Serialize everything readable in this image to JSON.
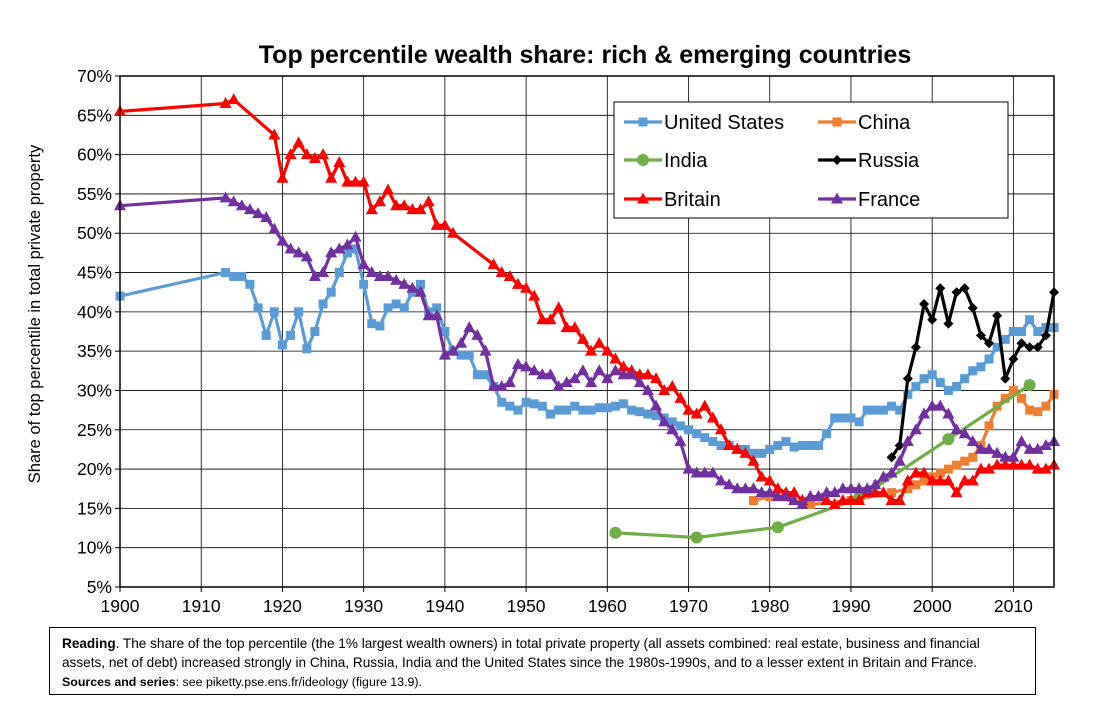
{
  "chart_data": {
    "type": "line",
    "title": "Top percentile wealth share: rich & emerging countries",
    "ylabel": "Share of top percentile in total private property",
    "xlabel": "",
    "xlim": [
      1900,
      2015
    ],
    "ylim": [
      5,
      70
    ],
    "x_ticks": [
      "1900",
      "1910",
      "1920",
      "1930",
      "1940",
      "1950",
      "1960",
      "1970",
      "1980",
      "1990",
      "2000",
      "2010"
    ],
    "y_ticks": [
      "5%",
      "10%",
      "15%",
      "20%",
      "25%",
      "30%",
      "35%",
      "40%",
      "45%",
      "50%",
      "55%",
      "60%",
      "65%",
      "70%"
    ],
    "grid": true,
    "legend_position": "top-right",
    "series": [
      {
        "name": "United States",
        "color": "#5b9bd5",
        "marker": "square",
        "x": [
          1900,
          1913,
          1914,
          1915,
          1916,
          1917,
          1918,
          1919,
          1920,
          1921,
          1922,
          1923,
          1924,
          1925,
          1926,
          1927,
          1928,
          1929,
          1930,
          1931,
          1932,
          1933,
          1934,
          1935,
          1936,
          1937,
          1938,
          1939,
          1940,
          1941,
          1942,
          1943,
          1944,
          1945,
          1946,
          1947,
          1948,
          1949,
          1950,
          1951,
          1952,
          1953,
          1954,
          1955,
          1956,
          1957,
          1958,
          1959,
          1960,
          1961,
          1962,
          1963,
          1964,
          1965,
          1966,
          1967,
          1968,
          1969,
          1970,
          1971,
          1972,
          1973,
          1974,
          1975,
          1976,
          1977,
          1978,
          1979,
          1980,
          1981,
          1982,
          1983,
          1984,
          1985,
          1986,
          1987,
          1988,
          1989,
          1990,
          1991,
          1992,
          1993,
          1994,
          1995,
          1996,
          1997,
          1998,
          1999,
          2000,
          2001,
          2002,
          2003,
          2004,
          2005,
          2006,
          2007,
          2008,
          2009,
          2010,
          2011,
          2012,
          2013,
          2014,
          2015
        ],
        "y": [
          42,
          45,
          44.5,
          44.5,
          43.5,
          40.5,
          37,
          40,
          35.8,
          37,
          40,
          35.3,
          37.5,
          41,
          42.5,
          45,
          47.5,
          48,
          43.5,
          38.5,
          38.2,
          40.5,
          41,
          40.5,
          42.5,
          43.5,
          40,
          40.5,
          37.5,
          35,
          34.5,
          34.5,
          32,
          32,
          30.5,
          28.5,
          28,
          27.5,
          28.5,
          28.3,
          28,
          27,
          27.5,
          27.5,
          28,
          27.5,
          27.5,
          27.8,
          27.8,
          28,
          28.3,
          27.5,
          27.3,
          27,
          26.8,
          26.5,
          26,
          25.5,
          25,
          24.5,
          24,
          23.5,
          23,
          23,
          22.5,
          22.5,
          22,
          22,
          22.5,
          23,
          23.5,
          22.8,
          23,
          23,
          23,
          24.5,
          26.5,
          26.5,
          26.5,
          26,
          27.5,
          27.5,
          27.5,
          28,
          27.5,
          29.5,
          30.5,
          31.5,
          32,
          31,
          30,
          30.5,
          31.5,
          32.5,
          33,
          34,
          35.5,
          36.5,
          37.5,
          37.5,
          39,
          37.5,
          38,
          38
        ]
      },
      {
        "name": "China",
        "color": "#ed7d31",
        "marker": "square",
        "x": [
          1978,
          1980,
          1985,
          1990,
          1995,
          1997,
          1998,
          1999,
          2000,
          2001,
          2002,
          2003,
          2004,
          2005,
          2006,
          2007,
          2008,
          2009,
          2010,
          2011,
          2012,
          2013,
          2014,
          2015
        ],
        "y": [
          16,
          16.5,
          15.5,
          16,
          17,
          17.5,
          18,
          18.5,
          19,
          19.5,
          20,
          20.5,
          21,
          21.5,
          23,
          25.5,
          28,
          29,
          30,
          29,
          27.5,
          27.3,
          28,
          29.5
        ]
      },
      {
        "name": "India",
        "color": "#70ad47",
        "marker": "circle",
        "x": [
          1961,
          1971,
          1981,
          1991,
          2002,
          2012
        ],
        "y": [
          11.9,
          11.3,
          12.6,
          16.3,
          23.8,
          30.7
        ]
      },
      {
        "name": "Russia",
        "color": "#000000",
        "marker": "diamond",
        "x": [
          1995,
          1996,
          1997,
          1998,
          1999,
          2000,
          2001,
          2002,
          2003,
          2004,
          2005,
          2006,
          2007,
          2008,
          2009,
          2010,
          2011,
          2012,
          2013,
          2014,
          2015
        ],
        "y": [
          21.5,
          23,
          31.5,
          35.5,
          41,
          39,
          43,
          38.5,
          42.5,
          43,
          40.5,
          37,
          36,
          39.5,
          31.5,
          34,
          36,
          35.5,
          35.5,
          37,
          42.5
        ]
      },
      {
        "name": "Britain",
        "color": "#ff0000",
        "marker": "triangle",
        "x": [
          1900,
          1913,
          1914,
          1919,
          1920,
          1921,
          1922,
          1923,
          1924,
          1925,
          1926,
          1927,
          1928,
          1929,
          1930,
          1931,
          1932,
          1933,
          1934,
          1935,
          1936,
          1937,
          1938,
          1939,
          1940,
          1941,
          1946,
          1947,
          1948,
          1949,
          1950,
          1951,
          1952,
          1953,
          1954,
          1955,
          1956,
          1957,
          1958,
          1959,
          1960,
          1961,
          1962,
          1963,
          1964,
          1965,
          1966,
          1967,
          1968,
          1969,
          1970,
          1971,
          1972,
          1973,
          1974,
          1975,
          1976,
          1977,
          1978,
          1979,
          1980,
          1981,
          1982,
          1983,
          1984,
          1985,
          1986,
          1987,
          1988,
          1989,
          1990,
          1991,
          1992,
          1993,
          1994,
          1995,
          1996,
          1997,
          1998,
          1999,
          2000,
          2001,
          2002,
          2003,
          2004,
          2005,
          2006,
          2007,
          2008,
          2009,
          2010,
          2011,
          2012,
          2013,
          2014,
          2015
        ],
        "y": [
          65.5,
          66.5,
          67,
          62.5,
          57,
          60,
          61.5,
          60,
          59.5,
          60,
          57,
          59,
          56.5,
          56.5,
          56.5,
          53,
          54,
          55.5,
          53.5,
          53.5,
          53,
          53,
          54,
          51,
          51,
          50,
          46,
          45,
          44.5,
          43.5,
          43,
          42,
          39,
          39,
          40.5,
          38,
          38,
          36.5,
          35,
          36,
          35,
          34,
          33,
          32.5,
          32,
          32,
          31.5,
          30,
          30.5,
          29,
          27.5,
          27,
          28,
          26.5,
          25,
          23,
          22.5,
          22,
          21,
          19,
          18.5,
          17.5,
          17,
          17,
          16,
          16.5,
          16.5,
          16,
          15.5,
          16,
          16,
          16,
          17,
          17,
          17,
          16,
          16,
          18.5,
          19.5,
          19.5,
          18.5,
          18.5,
          18.5,
          17,
          18.5,
          18.5,
          20,
          20,
          20.5,
          20.5,
          20.5,
          20.5,
          20.5,
          20,
          20,
          20.5
        ]
      },
      {
        "name": "France",
        "color": "#7030a0",
        "marker": "triangle",
        "x": [
          1900,
          1913,
          1914,
          1915,
          1916,
          1917,
          1918,
          1919,
          1920,
          1921,
          1922,
          1923,
          1924,
          1925,
          1926,
          1927,
          1928,
          1929,
          1930,
          1931,
          1932,
          1933,
          1934,
          1935,
          1936,
          1937,
          1938,
          1939,
          1940,
          1941,
          1942,
          1943,
          1944,
          1945,
          1946,
          1947,
          1948,
          1949,
          1950,
          1951,
          1952,
          1953,
          1954,
          1955,
          1956,
          1957,
          1958,
          1959,
          1960,
          1961,
          1962,
          1963,
          1964,
          1965,
          1966,
          1967,
          1968,
          1969,
          1970,
          1971,
          1972,
          1973,
          1974,
          1975,
          1976,
          1977,
          1978,
          1979,
          1980,
          1981,
          1982,
          1983,
          1984,
          1985,
          1986,
          1987,
          1988,
          1989,
          1990,
          1991,
          1992,
          1993,
          1994,
          1995,
          1996,
          1997,
          1998,
          1999,
          2000,
          2001,
          2002,
          2003,
          2004,
          2005,
          2006,
          2007,
          2008,
          2009,
          2010,
          2011,
          2012,
          2013,
          2014,
          2015
        ],
        "y": [
          53.5,
          54.5,
          54,
          53.5,
          53,
          52.5,
          52,
          50.5,
          49,
          48,
          47.5,
          47,
          44.5,
          45,
          47.5,
          48,
          48.5,
          49.5,
          46,
          45,
          44.5,
          44.5,
          44,
          43.5,
          43,
          42.5,
          39.5,
          39.5,
          34.5,
          35,
          36,
          38,
          37,
          35,
          30.5,
          30.5,
          31,
          33.3,
          33,
          32.5,
          32,
          32,
          30.5,
          31,
          31.5,
          32.5,
          31,
          32.5,
          31.5,
          32.5,
          32,
          32,
          31,
          30,
          28,
          26,
          25,
          23.5,
          20,
          19.5,
          19.5,
          19.5,
          18.5,
          18,
          17.5,
          17.5,
          17.5,
          17,
          17,
          16.5,
          16.5,
          16,
          15.5,
          16.5,
          16.5,
          17,
          17,
          17.5,
          17.5,
          17.5,
          17.5,
          18,
          19,
          19.5,
          21,
          23.5,
          25,
          27,
          28,
          28,
          27,
          25,
          24.5,
          23.5,
          22.5,
          22.5,
          22,
          21.5,
          21.5,
          23.5,
          22.5,
          22.5,
          23,
          23.5
        ]
      }
    ]
  },
  "note": {
    "reading_label": "Reading",
    "reading_text": ". The share of the top percentile (the 1% largest wealth owners) in total private property (all assets combined: real estate, business and financial assets, net of debt) increased strongly in China, Russia, India and the United States since the 1980s-1990s, and to a lesser extent in Britain and France.",
    "sources_label": "Sources and series",
    "sources_text": ": see piketty.pse.ens.fr/ideology (figure 13.9)."
  }
}
